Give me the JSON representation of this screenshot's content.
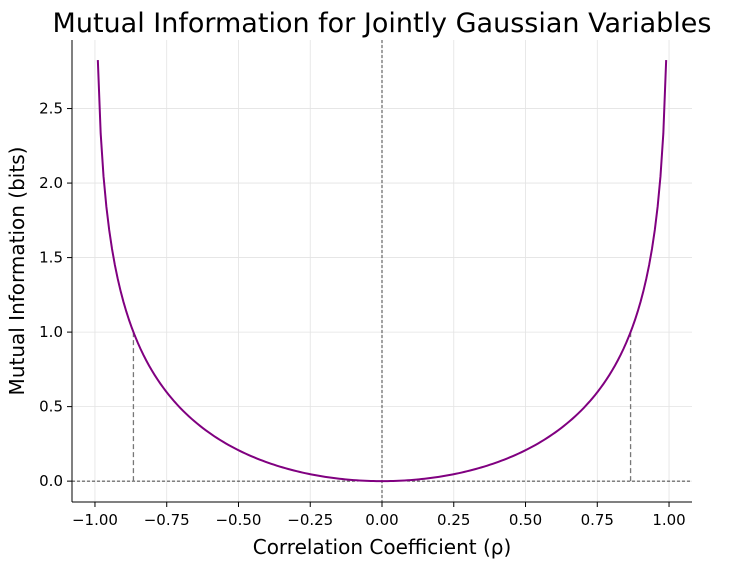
{
  "chart_data": {
    "type": "line",
    "title": "Mutual Information for Jointly Gaussian Variables",
    "xlabel": "Correlation Coefficient (ρ)",
    "ylabel": "Mutual Information (bits)",
    "xlim": [
      -1.08,
      1.08
    ],
    "ylim": [
      -0.14,
      2.96
    ],
    "x_ticks": [
      -1.0,
      -0.75,
      -0.5,
      -0.25,
      0.0,
      0.25,
      0.5,
      0.75,
      1.0
    ],
    "x_tick_labels": [
      "−1.00",
      "−0.75",
      "−0.50",
      "−0.25",
      "0.00",
      "0.25",
      "0.50",
      "0.75",
      "1.00"
    ],
    "y_ticks": [
      0.0,
      0.5,
      1.0,
      1.5,
      2.0,
      2.5
    ],
    "y_tick_labels": [
      "0.0",
      "0.5",
      "1.0",
      "1.5",
      "2.0",
      "2.5"
    ],
    "grid": true,
    "legend": "none",
    "series": [
      {
        "color": "#800080",
        "formula": "I(ρ) = −0.5·log2(1 − ρ²)",
        "x_range": [
          -0.99,
          0.99
        ]
      }
    ],
    "reference_lines": {
      "horizontal_y": 0.0,
      "vertical_x": 0.0
    },
    "markers": [
      {
        "x": -0.866,
        "y": 1.0
      },
      {
        "x": 0.866,
        "y": 1.0
      }
    ]
  }
}
